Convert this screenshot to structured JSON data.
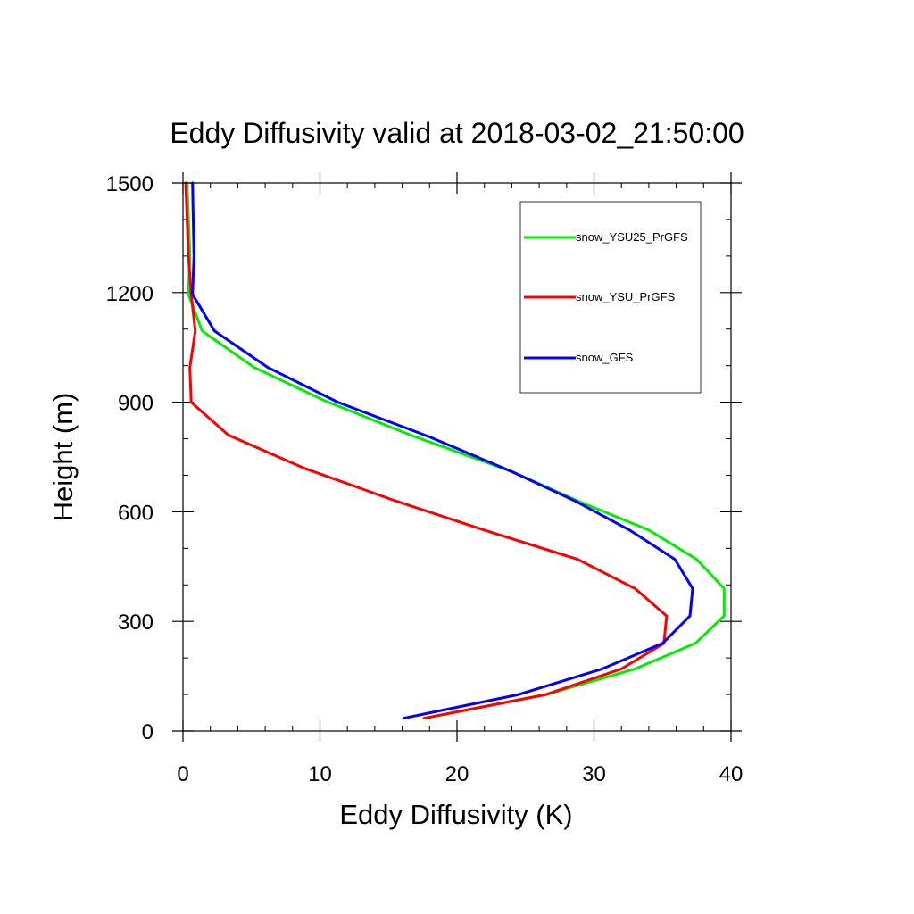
{
  "chart_data": {
    "type": "line",
    "title": "Eddy Diffusivity valid at 2018-03-02_21:50:00",
    "xlabel": "Eddy Diffusivity (K)",
    "ylabel": "Height (m)",
    "xlim": [
      0,
      40
    ],
    "ylim": [
      0,
      1500
    ],
    "x_ticks": [
      "0",
      "10",
      "20",
      "30",
      "40"
    ],
    "y_ticks": [
      "0",
      "300",
      "600",
      "900",
      "1200",
      "1500"
    ],
    "grid": false,
    "legend_position": "top-right",
    "series": [
      {
        "name": "snow_YSU25_PrGFS",
        "color": "#00ee00",
        "x": [
          17.6,
          26.5,
          33.0,
          37.4,
          39.5,
          39.5,
          37.5,
          34.0,
          28.8,
          24.0,
          16.6,
          10.3,
          5.2,
          1.4,
          0.4,
          0.5,
          0.3
        ],
        "y": [
          35,
          100,
          170,
          240,
          315,
          390,
          470,
          550,
          630,
          710,
          810,
          905,
          995,
          1095,
          1195,
          1300,
          1500
        ]
      },
      {
        "name": "snow_YSU_PrGFS",
        "color": "#ff0000",
        "x": [
          17.6,
          26.5,
          32.0,
          35.1,
          35.3,
          33.0,
          28.8,
          22.0,
          15.5,
          8.8,
          3.3,
          0.6,
          0.5,
          0.9,
          0.6,
          0.4,
          0.2
        ],
        "y": [
          35,
          100,
          170,
          240,
          315,
          390,
          470,
          550,
          630,
          720,
          810,
          900,
          995,
          1095,
          1195,
          1300,
          1500
        ]
      },
      {
        "name": "snow_GFS",
        "color": "#0000ff",
        "x": [
          16.1,
          24.5,
          30.6,
          35.0,
          37.0,
          37.2,
          35.9,
          32.6,
          28.6,
          24.0,
          18.0,
          11.3,
          6.2,
          2.3,
          0.7,
          0.8,
          0.7
        ],
        "y": [
          35,
          100,
          170,
          240,
          315,
          390,
          470,
          550,
          630,
          710,
          805,
          900,
          995,
          1095,
          1195,
          1300,
          1500
        ]
      }
    ]
  }
}
